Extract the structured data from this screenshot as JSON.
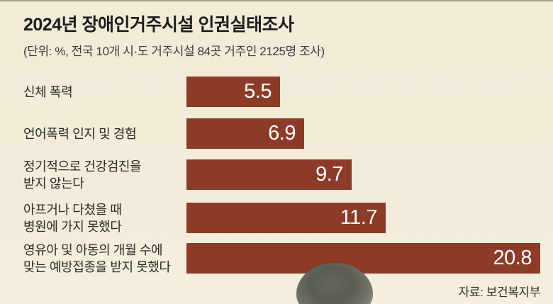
{
  "header": {
    "title": "2024년 장애인거주시설 인권실태조사",
    "subtitle": "(단위: %, 전국 10개 시·도 거주시설 84곳 거주인 2125명 조사)"
  },
  "chart_data": {
    "type": "bar",
    "orientation": "horizontal",
    "unit": "%",
    "title": "2024년 장애인거주시설 인권실태조사",
    "categories": [
      "신체 폭력",
      "언어폭력 인지 및 경험",
      "정기적으로 건강검진을 받지 않는다",
      "아프거나 다쳤을 때 병원에 가지 못했다",
      "영유아 및 아동의 개월 수에 맞는 예방접종을 받지 못했다"
    ],
    "category_lines": [
      [
        "신체 폭력"
      ],
      [
        "언어폭력 인지 및 경험"
      ],
      [
        "정기적으로 건강검진을",
        "받지 않는다"
      ],
      [
        "아프거나 다쳤을 때",
        "병원에 가지 못했다"
      ],
      [
        "영유아 및 아동의 개월 수에",
        "맞는 예방접종을 받지 못했다"
      ]
    ],
    "values": [
      5.5,
      6.9,
      9.7,
      11.7,
      20.8
    ],
    "xlim": [
      0,
      20.8
    ],
    "grid": false,
    "legend": false,
    "value_labels_inside_bars": true
  },
  "footer": {
    "source": "자료: 보건복지부"
  },
  "colors": {
    "background": "#F3ECDA",
    "bar": "#8C3B29",
    "value_text": "#FFFFFF",
    "title_text": "#1C1C1C",
    "body_text": "#2B2B2B"
  },
  "photo": {
    "label": "back of a person's head wearing a gray knit hat"
  }
}
